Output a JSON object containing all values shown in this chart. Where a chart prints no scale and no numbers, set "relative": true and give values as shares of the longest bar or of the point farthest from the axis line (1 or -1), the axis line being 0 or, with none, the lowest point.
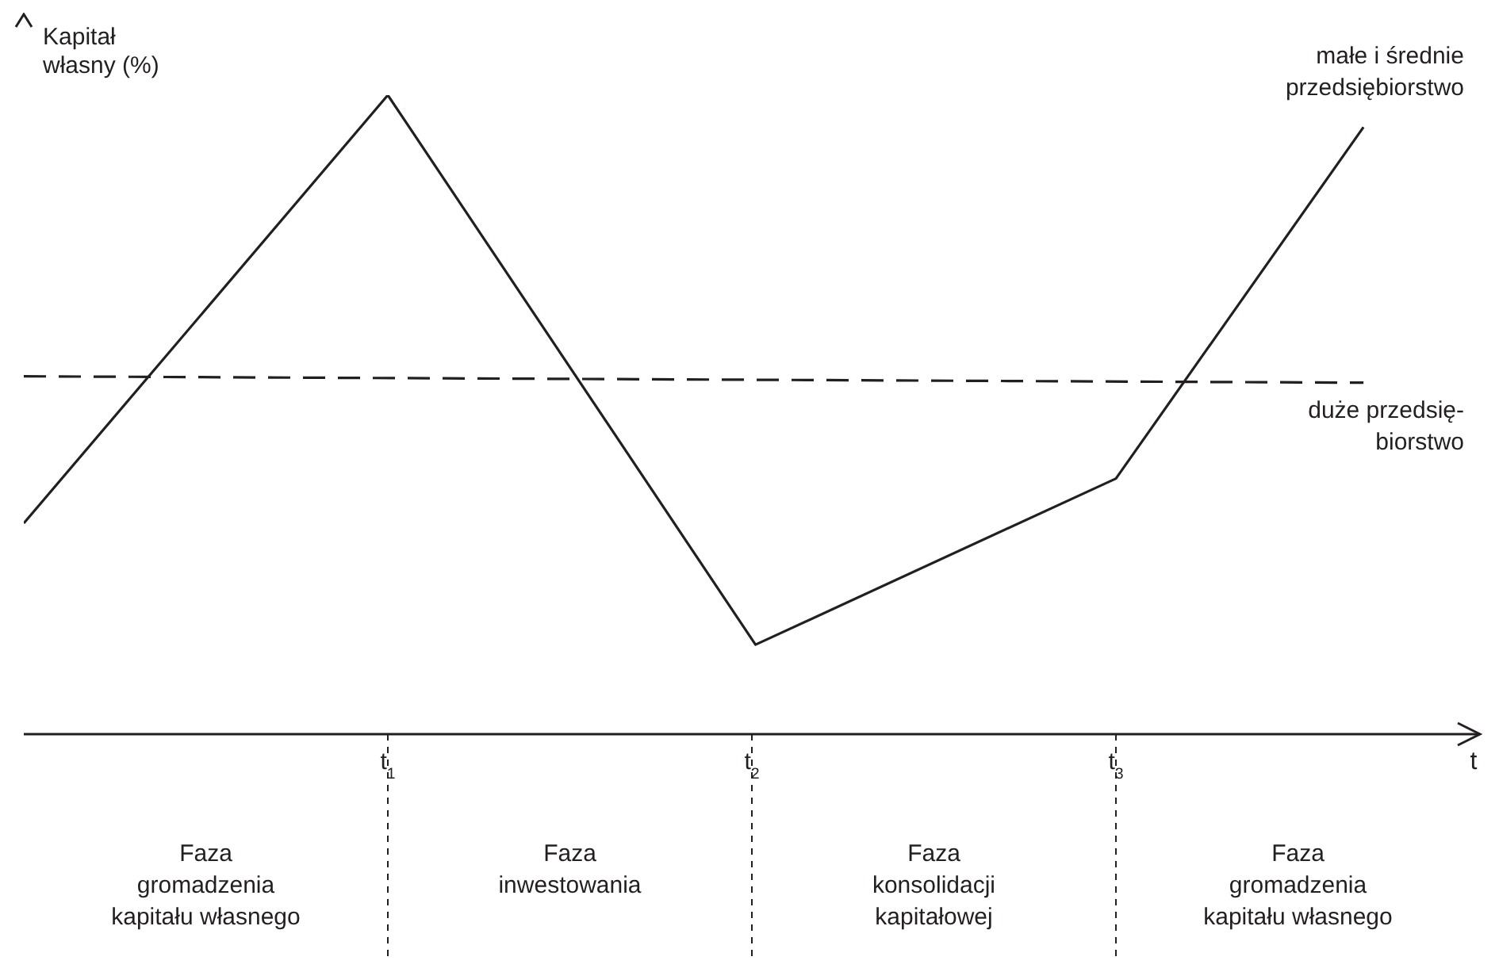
{
  "chart_data": {
    "type": "line",
    "ylabel": "Kapitał\nwłasny (%)",
    "xlabel": "t",
    "relative": true,
    "xlim": [
      0,
      4
    ],
    "xticks": [
      {
        "value": 1,
        "label": "t$_{1}$"
      },
      {
        "value": 2,
        "label": "t$_{2}$"
      },
      {
        "value": 3,
        "label": "t$_{3}$"
      }
    ],
    "series": [
      {
        "name": "małe i średnie\nprzedsiębiorstwo",
        "color": "#231f20",
        "line_style": "solid",
        "x": [
          0,
          1,
          2.01,
          3,
          3.68
        ],
        "values": [
          0.33,
          1,
          0.14,
          0.4,
          0.95
        ]
      },
      {
        "name": "duże przedsię-\nbiorstwo",
        "color": "#231f20",
        "line_style": "dashed",
        "x": [
          0,
          3.68
        ],
        "values": [
          0.56,
          0.55
        ]
      }
    ],
    "annotations": [
      "Faza\ngromadzenia\nkapitału własnego",
      "Faza\ninwestowania",
      "Faza\nkonsolidacji\nkapitałowej",
      "Faza\ngromadzenia\nkapitału własnego"
    ],
    "grid": false,
    "legend": false,
    "marker": "none"
  }
}
